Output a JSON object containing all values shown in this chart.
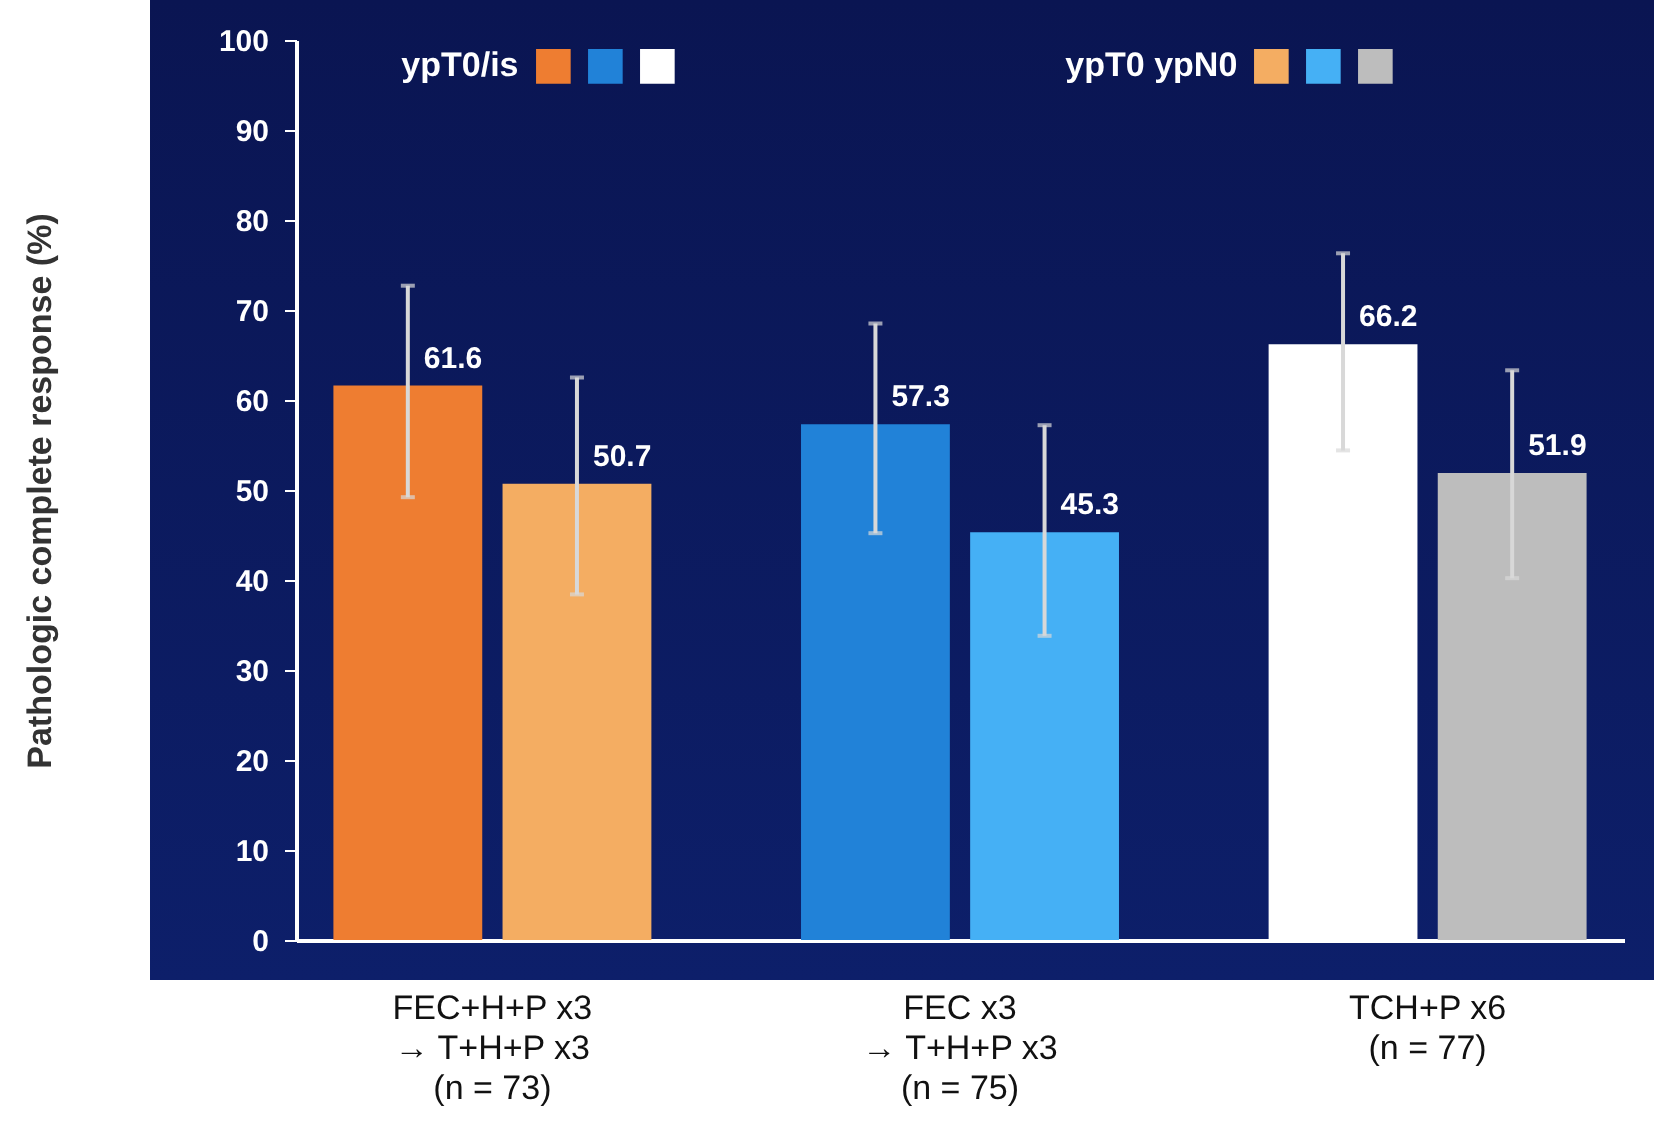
{
  "chart_data": {
    "type": "bar",
    "ylabel": "Pathologic complete response (%)",
    "categories": [
      "FEC+H+P x3\n→ T+H+P x3\n(n = 73)",
      "FEC x3\n→ T+H+P x3\n(n = 75)",
      "TCH+P x6\n(n = 77)"
    ],
    "series": [
      {
        "name": "ypT0/is",
        "colors": [
          "#ee7d31",
          "#2182d8",
          "#ffffff"
        ],
        "values": [
          61.6,
          57.3,
          66.2
        ],
        "errors": [
          [
            49.2,
            72.7
          ],
          [
            45.2,
            68.5
          ],
          [
            54.4,
            76.3
          ]
        ]
      },
      {
        "name": "ypT0 ypN0",
        "colors": [
          "#f4ad62",
          "#45b0f5",
          "#bdbdbd"
        ],
        "values": [
          50.7,
          45.3,
          51.9
        ],
        "errors": [
          [
            38.4,
            62.5
          ],
          [
            33.8,
            57.2
          ],
          [
            40.2,
            63.3
          ]
        ]
      }
    ],
    "ylim": [
      0,
      100
    ],
    "yticks": [
      0,
      10,
      20,
      30,
      40,
      50,
      60,
      70,
      80,
      90,
      100
    ],
    "grid": false,
    "legend": "top",
    "data_labels": true
  }
}
